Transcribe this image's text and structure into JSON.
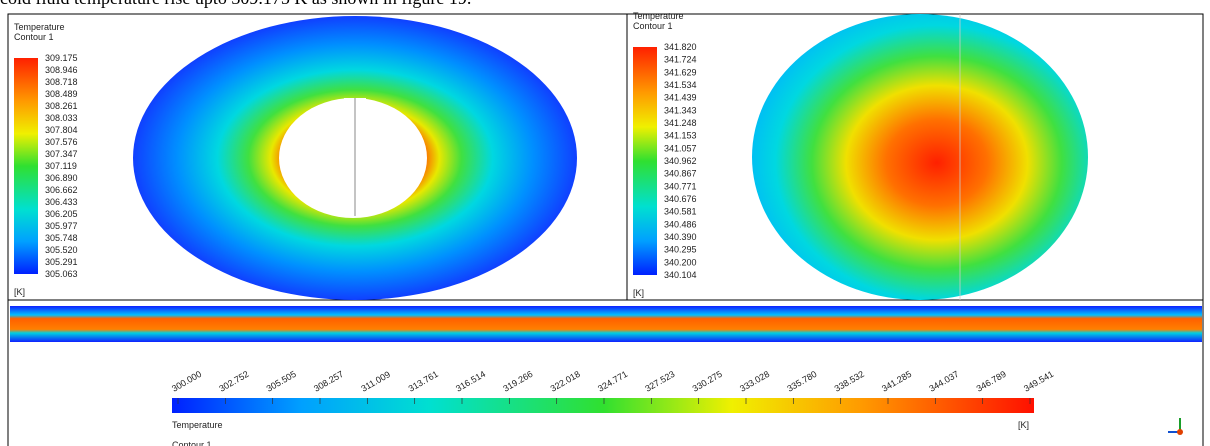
{
  "caption": "cold fluid temperature rise upto 309.175 K as shown in figure 19.",
  "panels": [
    {
      "title": "Temperature",
      "subtitle": "Contour 1",
      "unit": "[K]",
      "legend": [
        "309.175",
        "308.946",
        "308.718",
        "308.489",
        "308.261",
        "308.033",
        "307.804",
        "307.576",
        "307.347",
        "307.119",
        "306.890",
        "306.662",
        "306.433",
        "306.205",
        "305.977",
        "305.748",
        "305.520",
        "305.291",
        "305.063"
      ]
    },
    {
      "title": "Temperature",
      "subtitle": "Contour 1",
      "unit": "[K]",
      "legend": [
        "341.820",
        "341.724",
        "341.629",
        "341.534",
        "341.439",
        "341.343",
        "341.248",
        "341.153",
        "341.057",
        "340.962",
        "340.867",
        "340.771",
        "340.676",
        "340.581",
        "340.486",
        "340.390",
        "340.295",
        "340.200",
        "340.104"
      ]
    },
    {
      "title": "Temperature",
      "subtitle": "Contour 1",
      "unit": "[K]",
      "legend": [
        "300.000",
        "302.752",
        "305.505",
        "308.257",
        "311.009",
        "313.761",
        "316.514",
        "319.266",
        "322.018",
        "324.771",
        "327.523",
        "330.275",
        "333.028",
        "335.780",
        "338.532",
        "341.285",
        "344.037",
        "346.789",
        "349.541"
      ]
    }
  ]
}
